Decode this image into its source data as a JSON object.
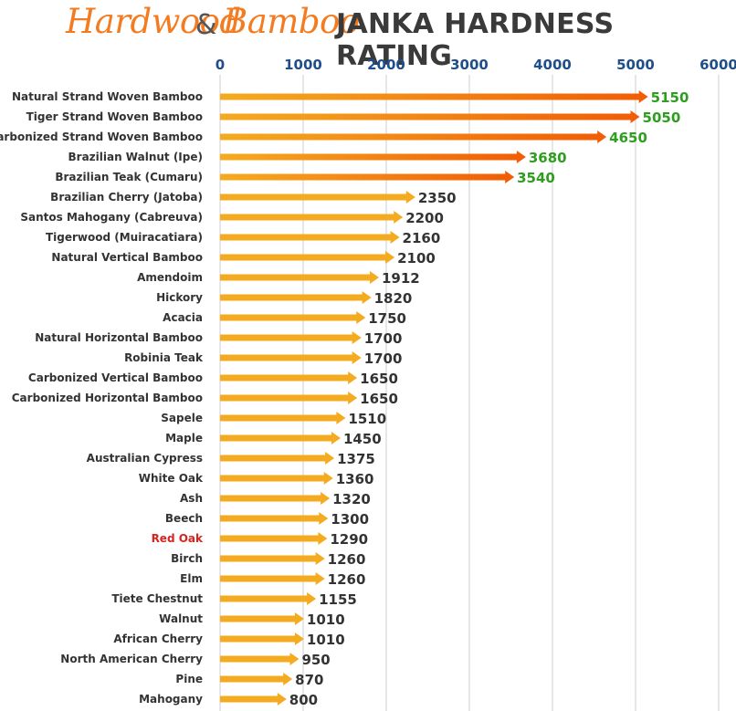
{
  "header": {
    "brand_part1": "Hardwood",
    "brand_amp": "&",
    "brand_part2": "Bamboo",
    "title": "JANKA HARDNESS RATING"
  },
  "colors": {
    "bar": "#f5ab1f",
    "bar_high_start": "#f5ab1f",
    "bar_high_end": "#f25c05",
    "axis_tick": "#1f4e8c",
    "category": "#333333",
    "category_highlight": "#d9231f",
    "value_normal": "#333333",
    "value_high": "#2e9e1f",
    "grid": "#cfcfcf",
    "brand": "#f47b20"
  },
  "chart_data": {
    "type": "bar",
    "orientation": "horizontal",
    "title": "JANKA HARDNESS RATING",
    "xlim": [
      0,
      6000
    ],
    "x_ticks": [
      0,
      1000,
      2000,
      3000,
      4000,
      5000,
      6000
    ],
    "x_axis_position": "top",
    "grid": true,
    "highlight_category": "Red Oak",
    "high_value_threshold": 3500,
    "categories": [
      "Natural Strand Woven Bamboo",
      "Tiger Strand Woven Bamboo",
      "Carbonized Strand Woven Bamboo",
      "Brazilian Walnut (Ipe)",
      "Brazilian Teak (Cumaru)",
      "Brazilian Cherry (Jatoba)",
      "Santos Mahogany (Cabreuva)",
      "Tigerwood (Muiracatiara)",
      "Natural Vertical Bamboo",
      "Amendoim",
      "Hickory",
      "Acacia",
      "Natural Horizontal Bamboo",
      "Robinia Teak",
      "Carbonized Vertical Bamboo",
      "Carbonized Horizontal Bamboo",
      "Sapele",
      "Maple",
      "Australian Cypress",
      "White Oak",
      "Ash",
      "Beech",
      "Red Oak",
      "Birch",
      "Elm",
      "Tiete Chestnut",
      "Walnut",
      "African Cherry",
      "North American Cherry",
      "Pine",
      "Mahogany"
    ],
    "values": [
      5150,
      5050,
      4650,
      3680,
      3540,
      2350,
      2200,
      2160,
      2100,
      1912,
      1820,
      1750,
      1700,
      1700,
      1650,
      1650,
      1510,
      1450,
      1375,
      1360,
      1320,
      1300,
      1290,
      1260,
      1260,
      1155,
      1010,
      1010,
      950,
      870,
      800
    ]
  }
}
